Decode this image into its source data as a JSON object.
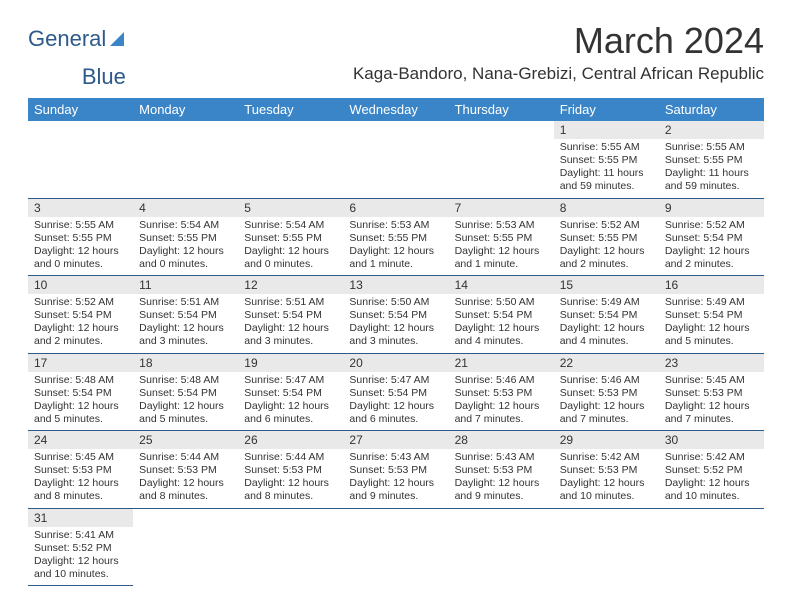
{
  "logo": {
    "word1": "General",
    "word2": "Blue"
  },
  "title": "March 2024",
  "location": "Kaga-Bandoro, Nana-Grebizi, Central African Republic",
  "colors": {
    "header_bg": "#3a85c8",
    "header_text": "#ffffff",
    "daynum_bg": "#e9e9e9",
    "border": "#2d5a8a",
    "text": "#333333",
    "logo": "#2d5a8a"
  },
  "weekdays": [
    "Sunday",
    "Monday",
    "Tuesday",
    "Wednesday",
    "Thursday",
    "Friday",
    "Saturday"
  ],
  "weeks": [
    [
      null,
      null,
      null,
      null,
      null,
      {
        "n": "1",
        "sr": "Sunrise: 5:55 AM",
        "ss": "Sunset: 5:55 PM",
        "dl": "Daylight: 11 hours and 59 minutes."
      },
      {
        "n": "2",
        "sr": "Sunrise: 5:55 AM",
        "ss": "Sunset: 5:55 PM",
        "dl": "Daylight: 11 hours and 59 minutes."
      }
    ],
    [
      {
        "n": "3",
        "sr": "Sunrise: 5:55 AM",
        "ss": "Sunset: 5:55 PM",
        "dl": "Daylight: 12 hours and 0 minutes."
      },
      {
        "n": "4",
        "sr": "Sunrise: 5:54 AM",
        "ss": "Sunset: 5:55 PM",
        "dl": "Daylight: 12 hours and 0 minutes."
      },
      {
        "n": "5",
        "sr": "Sunrise: 5:54 AM",
        "ss": "Sunset: 5:55 PM",
        "dl": "Daylight: 12 hours and 0 minutes."
      },
      {
        "n": "6",
        "sr": "Sunrise: 5:53 AM",
        "ss": "Sunset: 5:55 PM",
        "dl": "Daylight: 12 hours and 1 minute."
      },
      {
        "n": "7",
        "sr": "Sunrise: 5:53 AM",
        "ss": "Sunset: 5:55 PM",
        "dl": "Daylight: 12 hours and 1 minute."
      },
      {
        "n": "8",
        "sr": "Sunrise: 5:52 AM",
        "ss": "Sunset: 5:55 PM",
        "dl": "Daylight: 12 hours and 2 minutes."
      },
      {
        "n": "9",
        "sr": "Sunrise: 5:52 AM",
        "ss": "Sunset: 5:54 PM",
        "dl": "Daylight: 12 hours and 2 minutes."
      }
    ],
    [
      {
        "n": "10",
        "sr": "Sunrise: 5:52 AM",
        "ss": "Sunset: 5:54 PM",
        "dl": "Daylight: 12 hours and 2 minutes."
      },
      {
        "n": "11",
        "sr": "Sunrise: 5:51 AM",
        "ss": "Sunset: 5:54 PM",
        "dl": "Daylight: 12 hours and 3 minutes."
      },
      {
        "n": "12",
        "sr": "Sunrise: 5:51 AM",
        "ss": "Sunset: 5:54 PM",
        "dl": "Daylight: 12 hours and 3 minutes."
      },
      {
        "n": "13",
        "sr": "Sunrise: 5:50 AM",
        "ss": "Sunset: 5:54 PM",
        "dl": "Daylight: 12 hours and 3 minutes."
      },
      {
        "n": "14",
        "sr": "Sunrise: 5:50 AM",
        "ss": "Sunset: 5:54 PM",
        "dl": "Daylight: 12 hours and 4 minutes."
      },
      {
        "n": "15",
        "sr": "Sunrise: 5:49 AM",
        "ss": "Sunset: 5:54 PM",
        "dl": "Daylight: 12 hours and 4 minutes."
      },
      {
        "n": "16",
        "sr": "Sunrise: 5:49 AM",
        "ss": "Sunset: 5:54 PM",
        "dl": "Daylight: 12 hours and 5 minutes."
      }
    ],
    [
      {
        "n": "17",
        "sr": "Sunrise: 5:48 AM",
        "ss": "Sunset: 5:54 PM",
        "dl": "Daylight: 12 hours and 5 minutes."
      },
      {
        "n": "18",
        "sr": "Sunrise: 5:48 AM",
        "ss": "Sunset: 5:54 PM",
        "dl": "Daylight: 12 hours and 5 minutes."
      },
      {
        "n": "19",
        "sr": "Sunrise: 5:47 AM",
        "ss": "Sunset: 5:54 PM",
        "dl": "Daylight: 12 hours and 6 minutes."
      },
      {
        "n": "20",
        "sr": "Sunrise: 5:47 AM",
        "ss": "Sunset: 5:54 PM",
        "dl": "Daylight: 12 hours and 6 minutes."
      },
      {
        "n": "21",
        "sr": "Sunrise: 5:46 AM",
        "ss": "Sunset: 5:53 PM",
        "dl": "Daylight: 12 hours and 7 minutes."
      },
      {
        "n": "22",
        "sr": "Sunrise: 5:46 AM",
        "ss": "Sunset: 5:53 PM",
        "dl": "Daylight: 12 hours and 7 minutes."
      },
      {
        "n": "23",
        "sr": "Sunrise: 5:45 AM",
        "ss": "Sunset: 5:53 PM",
        "dl": "Daylight: 12 hours and 7 minutes."
      }
    ],
    [
      {
        "n": "24",
        "sr": "Sunrise: 5:45 AM",
        "ss": "Sunset: 5:53 PM",
        "dl": "Daylight: 12 hours and 8 minutes."
      },
      {
        "n": "25",
        "sr": "Sunrise: 5:44 AM",
        "ss": "Sunset: 5:53 PM",
        "dl": "Daylight: 12 hours and 8 minutes."
      },
      {
        "n": "26",
        "sr": "Sunrise: 5:44 AM",
        "ss": "Sunset: 5:53 PM",
        "dl": "Daylight: 12 hours and 8 minutes."
      },
      {
        "n": "27",
        "sr": "Sunrise: 5:43 AM",
        "ss": "Sunset: 5:53 PM",
        "dl": "Daylight: 12 hours and 9 minutes."
      },
      {
        "n": "28",
        "sr": "Sunrise: 5:43 AM",
        "ss": "Sunset: 5:53 PM",
        "dl": "Daylight: 12 hours and 9 minutes."
      },
      {
        "n": "29",
        "sr": "Sunrise: 5:42 AM",
        "ss": "Sunset: 5:53 PM",
        "dl": "Daylight: 12 hours and 10 minutes."
      },
      {
        "n": "30",
        "sr": "Sunrise: 5:42 AM",
        "ss": "Sunset: 5:52 PM",
        "dl": "Daylight: 12 hours and 10 minutes."
      }
    ],
    [
      {
        "n": "31",
        "sr": "Sunrise: 5:41 AM",
        "ss": "Sunset: 5:52 PM",
        "dl": "Daylight: 12 hours and 10 minutes."
      },
      null,
      null,
      null,
      null,
      null,
      null
    ]
  ]
}
